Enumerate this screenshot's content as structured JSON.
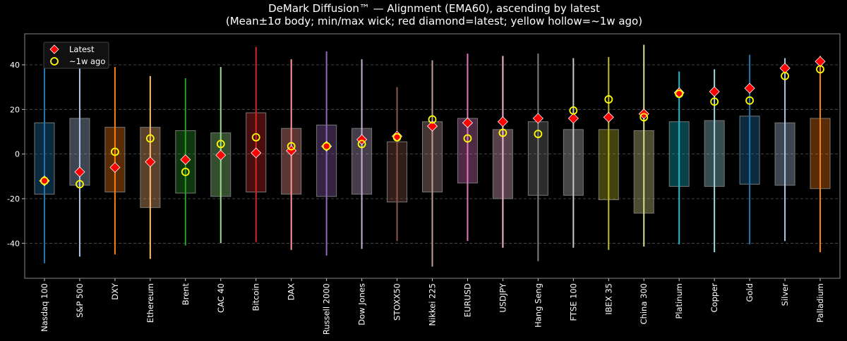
{
  "chart_data": {
    "type": "box",
    "title": "DeMark Diffusion™ — Alignment (EMA60), ascending by latest",
    "subtitle": "(Mean±1σ body; min/max wick; red diamond=latest; yellow hollow=~1w ago)",
    "xlabel": "",
    "ylabel": "",
    "ylim": [
      -55.7,
      53.9
    ],
    "yticks": [
      -40,
      -20,
      0,
      20,
      40
    ],
    "grid": true,
    "legend_position": "top-left",
    "legend": [
      {
        "label": "Latest",
        "marker": "red-diamond"
      },
      {
        "label": "~1w ago",
        "marker": "yellow-hollow-circle"
      }
    ],
    "colors": {
      "latest": "#ff0000",
      "prev": "#ffff00",
      "background": "#000000",
      "grid": "#555555"
    },
    "categories": [
      "Nasdaq 100",
      "S&P 500",
      "DXY",
      "Ethereum",
      "Brent",
      "CAC 40",
      "Bitcoin",
      "DAX",
      "Russell 2000",
      "Dow Jones",
      "STOXX50",
      "Nikkei 225",
      "EURUSD",
      "USDJPY",
      "Hang Seng",
      "FTSE 100",
      "IBEX 35",
      "China 300",
      "Platinum",
      "Copper",
      "Gold",
      "Silver",
      "Palladium"
    ],
    "series_colors": [
      "#1f77b4",
      "#aec7e8",
      "#ff7f0e",
      "#ffbb78",
      "#2ca02c",
      "#98df8a",
      "#d62728",
      "#ff9896",
      "#9467bd",
      "#c5b0d5",
      "#8c564b",
      "#c49c94",
      "#e377c2",
      "#f7b6d2",
      "#7f7f7f",
      "#c7c7c7",
      "#bcbd22",
      "#dbdb8d",
      "#17becf",
      "#9edae5",
      "#1f77b4",
      "#aec7e8",
      "#ff7f0e"
    ],
    "body_high": [
      14,
      16,
      12,
      12,
      10.5,
      9.5,
      18.5,
      11.5,
      13,
      11.5,
      5.5,
      14.5,
      16,
      11,
      14.5,
      11,
      11,
      10.5,
      14.5,
      15,
      17,
      14,
      16
    ],
    "body_low": [
      -18,
      -14,
      -17,
      -24,
      -17.5,
      -19,
      -17,
      -18,
      -19,
      -18,
      -21.5,
      -17,
      -13,
      -20,
      -18.5,
      -18.5,
      -20.5,
      -26.5,
      -14.5,
      -14.5,
      -13.5,
      -14,
      -15.5
    ],
    "wick_max": [
      43,
      46,
      39,
      35,
      34,
      39,
      48,
      42.5,
      46,
      42.5,
      30,
      42,
      45,
      44,
      45,
      43,
      43.5,
      49,
      37,
      38,
      44.5,
      43,
      44
    ],
    "wick_min": [
      -49,
      -46,
      -45,
      -47,
      -41,
      -40,
      -39.5,
      -43,
      -45.5,
      -42.5,
      -39,
      -50.5,
      -39,
      -42,
      -48,
      -42,
      -43,
      -41.5,
      -40.5,
      -44,
      -40.5,
      -39,
      -44
    ],
    "latest": [
      -12,
      -8,
      -6,
      -3.5,
      -2.5,
      -0.5,
      0.5,
      1.5,
      3.5,
      6.5,
      8,
      12.5,
      14,
      14.5,
      16,
      16,
      16.5,
      18,
      27.5,
      28,
      29.5,
      38.5,
      41.5
    ],
    "week_ago": [
      -12,
      -13.5,
      1,
      7,
      -8,
      4.5,
      7.5,
      3.5,
      3.5,
      4.5,
      7.5,
      15.5,
      7,
      9.5,
      9,
      19.5,
      24.5,
      16.5,
      27,
      23.5,
      24,
      35,
      38
    ]
  }
}
